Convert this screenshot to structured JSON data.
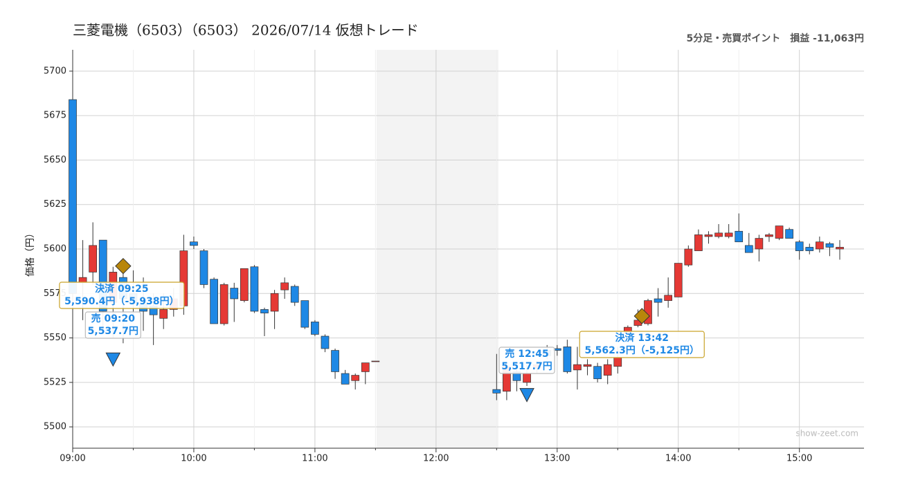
{
  "chart_data": {
    "type": "candlestick",
    "title": "三菱電機（6503）（6503） 2026/07/14 仮想トレード",
    "subtitle": "5分足・売買ポイント　損益 -11,063円",
    "y_label": "価格（円）",
    "watermark": "show-zeet.com",
    "ylim": [
      5488,
      5712
    ],
    "yticks": [
      5500,
      5525,
      5550,
      5575,
      5600,
      5625,
      5650,
      5675,
      5700
    ],
    "xlim": [
      "09:00",
      "15:32"
    ],
    "xticks": [
      "09:00",
      "10:00",
      "11:00",
      "12:00",
      "13:00",
      "14:00",
      "15:00"
    ],
    "grid": true,
    "up_color": "#e53935",
    "down_color": "#1e88e5",
    "candles": {
      "x": [
        "09:00",
        "09:05",
        "09:10",
        "09:15",
        "09:20",
        "09:25",
        "09:30",
        "09:35",
        "09:40",
        "09:45",
        "09:50",
        "09:55",
        "10:00",
        "10:05",
        "10:10",
        "10:15",
        "10:20",
        "10:25",
        "10:30",
        "10:35",
        "10:40",
        "10:45",
        "10:50",
        "10:55",
        "11:00",
        "11:05",
        "11:10",
        "11:15",
        "11:20",
        "11:25",
        "11:30",
        "12:30",
        "12:35",
        "12:40",
        "12:45",
        "12:50",
        "12:55",
        "13:00",
        "13:05",
        "13:10",
        "13:15",
        "13:20",
        "13:25",
        "13:30",
        "13:35",
        "13:40",
        "13:45",
        "13:50",
        "13:55",
        "14:00",
        "14:05",
        "14:10",
        "14:15",
        "14:20",
        "14:25",
        "14:30",
        "14:35",
        "14:40",
        "14:45",
        "14:50",
        "14:55",
        "15:00",
        "15:05",
        "15:10",
        "15:15",
        "15:20"
      ],
      "open": [
        5684,
        5581,
        5587,
        5605,
        5570,
        5584,
        5575,
        5569,
        5568,
        5561,
        5566,
        5568,
        5604,
        5599,
        5583,
        5558,
        5578,
        5571,
        5590,
        5566,
        5565,
        5577,
        5579,
        5571,
        5559,
        5551,
        5543,
        5530,
        5526,
        5531,
        5537,
        5521,
        5520,
        5531,
        5525,
        5533,
        5543,
        5544,
        5545,
        5532,
        5534,
        5534,
        5529,
        5534,
        5553,
        5557,
        5558,
        5572,
        5571,
        5573,
        5591,
        5599,
        5607,
        5607,
        5607,
        5610,
        5602,
        5600,
        5607,
        5606,
        5611,
        5604,
        5601,
        5600,
        5603,
        5600
      ],
      "high": [
        5684,
        5605,
        5615,
        5605,
        5590,
        5588,
        5588,
        5584,
        5575,
        5575,
        5578,
        5608,
        5607,
        5600,
        5584,
        5581,
        5581,
        5589,
        5591,
        5567,
        5577,
        5584,
        5580,
        5571,
        5560,
        5552,
        5544,
        5532,
        5530,
        5536,
        5537,
        5541,
        5536,
        5532,
        5535,
        5537,
        5546,
        5546,
        5549,
        5545,
        5538,
        5536,
        5538,
        5545,
        5557,
        5566,
        5572,
        5578,
        5584,
        5592,
        5602,
        5611,
        5610,
        5614,
        5614,
        5620,
        5609,
        5608,
        5609,
        5613,
        5612,
        5605,
        5603,
        5607,
        5604,
        5605
      ],
      "low": [
        5570,
        5560,
        5580,
        5555,
        5550,
        5547,
        5560,
        5554,
        5546,
        5555,
        5562,
        5563,
        5600,
        5578,
        5558,
        5557,
        5559,
        5570,
        5564,
        5551,
        5555,
        5572,
        5568,
        5555,
        5551,
        5542,
        5527,
        5524,
        5521,
        5524,
        5537,
        5515,
        5515,
        5520,
        5523,
        5530,
        5538,
        5540,
        5530,
        5521,
        5529,
        5525,
        5524,
        5530,
        5550,
        5556,
        5557,
        5562,
        5567,
        5573,
        5590,
        5599,
        5603,
        5606,
        5606,
        5604,
        5598,
        5593,
        5604,
        5605,
        5606,
        5594,
        5597,
        5598,
        5596,
        5594
      ],
      "close": [
        5575,
        5584,
        5602,
        5565,
        5587,
        5572,
        5570,
        5565,
        5563,
        5566,
        5572,
        5599,
        5602,
        5580,
        5558,
        5580,
        5572,
        5589,
        5565,
        5564,
        5575,
        5581,
        5570,
        5556,
        5552,
        5544,
        5531,
        5524,
        5529,
        5536,
        5537,
        5519,
        5534,
        5526,
        5530,
        5535,
        5540,
        5543,
        5531,
        5535,
        5535,
        5527,
        5535,
        5539,
        5556,
        5560,
        5571,
        5570,
        5574,
        5592,
        5600,
        5608,
        5608,
        5609,
        5609,
        5604,
        5598,
        5606,
        5608,
        5613,
        5606,
        5599,
        5599,
        5604,
        5601,
        5601
      ]
    },
    "trades": [
      {
        "kind": "決済",
        "time": "09:25",
        "price": 5590.4,
        "price_label": "5,590.4円",
        "pnl_label": "（-5,938円）",
        "color": "#b8860b"
      },
      {
        "kind": "売",
        "time": "09:20",
        "price": 5537.7,
        "price_label": "5,537.7円",
        "color": "#1e88e5"
      },
      {
        "kind": "売",
        "time": "12:45",
        "price": 5517.7,
        "price_label": "5,517.7円",
        "color": "#1e88e5"
      },
      {
        "kind": "決済",
        "time": "13:42",
        "price": 5562.3,
        "price_label": "5,562.3円",
        "pnl_label": "（-5,125円）",
        "color": "#b8860b"
      }
    ]
  }
}
